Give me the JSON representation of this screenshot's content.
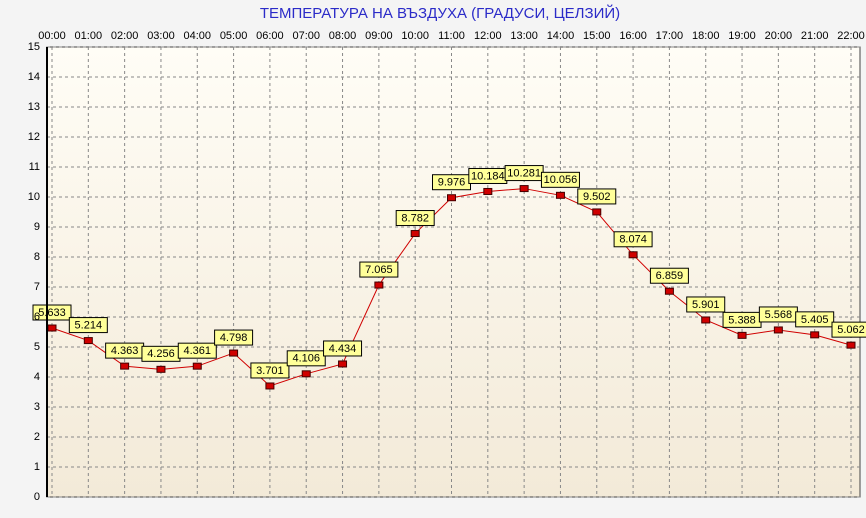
{
  "chart_data": {
    "type": "line",
    "title": "ТЕМПЕРАТУРА НА ВЪЗДУХА  (ГРАДУСИ, ЦЕЛЗИЙ)",
    "categories": [
      "00:00",
      "01:00",
      "02:00",
      "03:00",
      "04:00",
      "05:00",
      "06:00",
      "07:00",
      "08:00",
      "09:00",
      "10:00",
      "11:00",
      "12:00",
      "13:00",
      "14:00",
      "15:00",
      "16:00",
      "17:00",
      "18:00",
      "19:00",
      "20:00",
      "21:00",
      "22:00"
    ],
    "values": [
      5.633,
      5.214,
      4.363,
      4.256,
      4.361,
      4.798,
      3.701,
      4.106,
      4.434,
      7.065,
      8.782,
      9.976,
      10.184,
      10.281,
      10.056,
      9.502,
      8.074,
      6.859,
      5.901,
      5.388,
      5.568,
      5.405,
      5.062
    ],
    "color": "#d00000",
    "ylim": [
      0,
      15
    ],
    "yticks": [
      0,
      1,
      2,
      3,
      4,
      5,
      6,
      7,
      8,
      9,
      10,
      11,
      12,
      13,
      14,
      15
    ],
    "grid": true
  }
}
